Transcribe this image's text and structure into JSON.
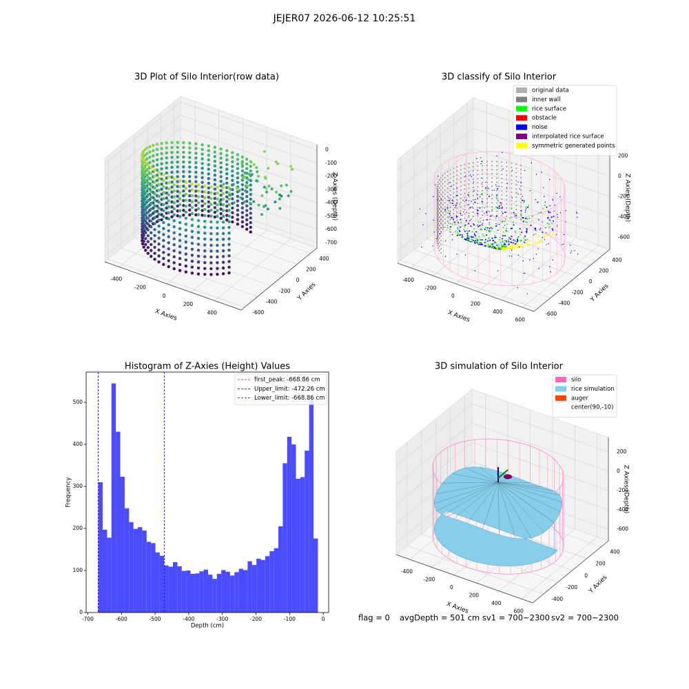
{
  "title": "JEJER07 2026-06-12 10:25:51",
  "chart_data": [
    {
      "type": "scatter3d",
      "title": "3D Plot of Silo Interior(row data)",
      "xlabel": "X Axies",
      "ylabel": "Y Axies",
      "zlabel": "Z Axies (Depth)",
      "xlim": [
        -520,
        620
      ],
      "ylim": [
        -650,
        500
      ],
      "zlim": [
        -740,
        40
      ],
      "xticks": [
        -400,
        -200,
        0,
        200,
        400
      ],
      "yticks": [
        -600,
        -400,
        -200,
        0,
        200,
        400
      ],
      "zticks": [
        -700,
        -600,
        -500,
        -400,
        -300,
        -200,
        -100,
        0
      ]
    },
    {
      "type": "scatter3d",
      "title": "3D classify of Silo Interior",
      "xlabel": "X Axies",
      "ylabel": "Y Axies",
      "zlabel": "Z Axies (Depth)",
      "xlim": [
        -520,
        700
      ],
      "ylim": [
        -650,
        500
      ],
      "zlim": [
        -720,
        300
      ],
      "xticks": [
        -400,
        -200,
        0,
        200,
        400,
        600
      ],
      "yticks": [
        -600,
        -400,
        -200,
        0,
        200,
        400
      ],
      "zticks": [
        -600,
        -400,
        -200,
        0,
        200
      ],
      "legend": [
        {
          "name": "original data",
          "color": "#b0b0b0"
        },
        {
          "name": "inner wall",
          "color": "#808080"
        },
        {
          "name": "rice surface",
          "color": "#00ff00"
        },
        {
          "name": "obstacle",
          "color": "#ff0000"
        },
        {
          "name": "noise",
          "color": "#0000ff"
        },
        {
          "name": "interpolated rice surface",
          "color": "#800080"
        },
        {
          "name": "symmetric generated points",
          "color": "#ffff00"
        }
      ]
    },
    {
      "type": "histogram",
      "title": "Histogram of Z-Axies (Height) Values",
      "xlabel": "Depth (cm)",
      "ylabel": "Frequency",
      "color": "#4b4bff",
      "bins": [
        -668.86,
        -655.8,
        -642.74,
        -629.69,
        -616.63,
        -603.57,
        -590.52,
        -577.46,
        -564.4,
        -551.35,
        -538.29,
        -525.23,
        -512.17,
        -499.12,
        -486.06,
        -473.0,
        -459.95,
        -446.89,
        -433.83,
        -420.78,
        -407.72,
        -394.66,
        -381.6,
        -368.55,
        -355.49,
        -342.43,
        -329.38,
        -316.32,
        -303.26,
        -290.21,
        -277.15,
        -264.09,
        -251.03,
        -237.98,
        -224.92,
        -211.86,
        -198.81,
        -185.75,
        -172.69,
        -159.64,
        -146.58,
        -133.52,
        -120.46,
        -107.41,
        -94.35,
        -81.29,
        -68.24,
        -55.18,
        -42.12,
        -29.07,
        -16.01
      ],
      "counts": [
        310,
        197,
        178,
        545,
        430,
        323,
        248,
        215,
        199,
        203,
        195,
        168,
        165,
        143,
        135,
        112,
        109,
        120,
        110,
        99,
        100,
        92,
        93,
        98,
        102,
        90,
        80,
        92,
        101,
        97,
        88,
        96,
        104,
        101,
        122,
        113,
        128,
        125,
        134,
        146,
        153,
        205,
        355,
        418,
        400,
        318,
        322,
        385,
        510,
        176
      ],
      "xlim": [
        -705,
        16
      ],
      "ylim": [
        0,
        572
      ],
      "xticks": [
        -700,
        -600,
        -500,
        -400,
        -300,
        -200,
        -100,
        0
      ],
      "yticks": [
        0,
        100,
        200,
        300,
        400,
        500
      ],
      "vlines": [
        {
          "name": "first_peak: -668.86 cm",
          "value": -668.86,
          "color": "#ff0000"
        },
        {
          "name": "Upper_limit: -472.26 cm",
          "value": -472.26,
          "color": "#0000cc"
        },
        {
          "name": "Lower_limit: -668.86 cm",
          "value": -668.86,
          "color": "#0000cc"
        }
      ]
    },
    {
      "type": "surface3d",
      "title": "3D simulation of Silo Interior",
      "xlabel": "X Axies",
      "ylabel": "Y Axies",
      "zlabel": "Z Axies (Depth)",
      "xlim": [
        -520,
        700
      ],
      "ylim": [
        -550,
        500
      ],
      "zlim": [
        -720,
        350
      ],
      "xticks": [
        -400,
        -200,
        0,
        200,
        400,
        600
      ],
      "yticks": [
        -400,
        -200,
        0,
        200,
        400
      ],
      "zticks": [
        -600,
        -400,
        -200,
        0,
        200
      ],
      "legend": [
        {
          "name": "silo",
          "color": "#ff69b4"
        },
        {
          "name": "rice simulation",
          "color": "#87ceeb"
        },
        {
          "name": "auger",
          "color": "#ff4500"
        },
        {
          "name": "center(90,-10)",
          "color": "#ffffff"
        }
      ]
    }
  ],
  "footer": [
    "flag = 0",
    "avgDepth = 501 cm",
    "sv1 = 700~2300",
    "sv2 = 700~2300"
  ]
}
